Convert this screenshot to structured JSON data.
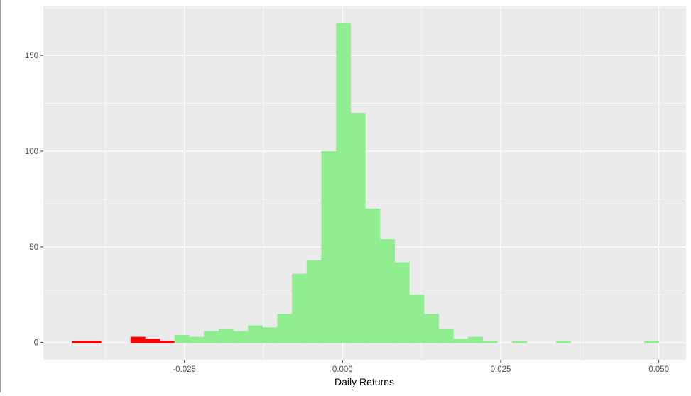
{
  "chart_data": {
    "type": "histogram",
    "title": "",
    "xlabel": "Daily Returns",
    "ylabel": "",
    "xlim": [
      -0.0473,
      0.0543
    ],
    "ylim": [
      -9,
      176
    ],
    "x_ticks": [
      -0.025,
      0.0,
      0.025,
      0.05
    ],
    "x_tick_labels": [
      "-0.025",
      "0.000",
      "0.025",
      "0.050"
    ],
    "y_ticks": [
      0,
      50,
      100,
      150
    ],
    "y_tick_labels": [
      "0",
      "50",
      "100",
      "150"
    ],
    "grid": true,
    "bin_start": -0.0428,
    "bin_width": 0.00232,
    "counts": [
      1,
      1,
      0,
      0,
      3,
      2,
      1,
      4,
      3,
      6,
      7,
      6,
      9,
      8,
      15,
      36,
      43,
      100,
      167,
      120,
      70,
      54,
      42,
      25,
      15,
      7,
      2,
      3,
      1,
      0,
      1,
      0,
      0,
      1,
      0,
      0,
      0,
      0,
      0,
      1
    ],
    "negative_tail_bins": 7,
    "colors": {
      "tail": "#ff0000",
      "main": "#90ee90",
      "panel": "#ebebeb",
      "grid": "#ffffff"
    }
  }
}
